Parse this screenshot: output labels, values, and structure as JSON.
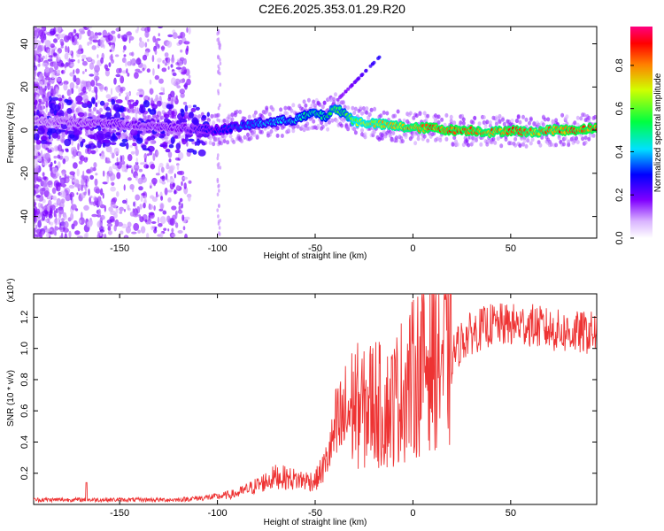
{
  "title": "C2E6.2025.353.01.29.R20",
  "chart_data": [
    {
      "type": "heatmap",
      "xlabel": "Height of straight line (km)",
      "ylabel": "Frequency (Hz)",
      "xlim": [
        -194,
        94
      ],
      "ylim": [
        -50,
        48
      ],
      "xticks": [
        -150,
        -100,
        -50,
        0,
        50
      ],
      "yticks": [
        -40,
        -20,
        0,
        20,
        40
      ],
      "colorbar": {
        "label": "Normalized spectral amplitude",
        "range": [
          0,
          0.98
        ],
        "ticks": [
          "0.0",
          "0.2",
          "0.4",
          "0.6",
          "0.8"
        ]
      },
      "ridge": {
        "description": "main spectral ridge frequency vs height",
        "x": [
          -194,
          -150,
          -120,
          -100,
          -80,
          -60,
          -50,
          -45,
          -40,
          -35,
          -30,
          -20,
          -10,
          0,
          10,
          20,
          30,
          40,
          50,
          60,
          70,
          80,
          94
        ],
        "y": [
          4,
          3,
          1,
          0,
          3,
          5,
          8,
          6,
          10,
          8,
          4,
          3,
          2,
          1,
          1,
          0,
          0,
          -1,
          0,
          -1,
          0,
          0,
          1
        ],
        "amplitude": [
          0.15,
          0.2,
          0.2,
          0.3,
          0.4,
          0.45,
          0.55,
          0.5,
          0.6,
          0.55,
          0.7,
          0.75,
          0.8,
          0.85,
          0.9,
          0.9,
          0.9,
          0.85,
          0.9,
          0.85,
          0.85,
          0.9,
          0.9
        ]
      }
    },
    {
      "type": "line",
      "xlabel": "Height of straight line (km)",
      "ylabel": "SNR (10 * v/v)",
      "y_scale_label": "(x10⁴)",
      "xlim": [
        -194,
        94
      ],
      "ylim": [
        0,
        1.35
      ],
      "xticks": [
        -150,
        -100,
        -50,
        0,
        50
      ],
      "yticks": [
        "0.2",
        "0.4",
        "0.6",
        "0.8",
        "1.0",
        "1.2"
      ],
      "series": [
        {
          "name": "SNR",
          "color": "#ee3333",
          "envelope_x": [
            -194,
            -170,
            -150,
            -120,
            -110,
            -100,
            -90,
            -80,
            -70,
            -60,
            -50,
            -45,
            -40,
            -35,
            -30,
            -25,
            -20,
            -15,
            -10,
            -5,
            0,
            5,
            10,
            15,
            20,
            25,
            30,
            40,
            50,
            60,
            70,
            80,
            94
          ],
          "envelope_y": [
            0.03,
            0.03,
            0.03,
            0.03,
            0.04,
            0.05,
            0.07,
            0.12,
            0.18,
            0.16,
            0.15,
            0.25,
            0.45,
            0.55,
            0.65,
            0.6,
            0.68,
            0.6,
            0.65,
            0.75,
            0.8,
            0.9,
            1.0,
            0.95,
            0.95,
            1.05,
            1.1,
            1.15,
            1.15,
            1.15,
            1.12,
            1.1,
            1.1
          ]
        }
      ]
    }
  ]
}
